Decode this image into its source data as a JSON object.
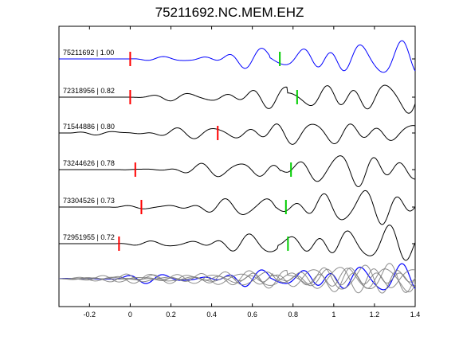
{
  "chart_data": {
    "type": "line",
    "title": "75211692.NC.MEM.EHZ",
    "xlabel": "",
    "ylabel": "",
    "xlim": [
      -0.35,
      1.4
    ],
    "x_ticks": [
      "-0.2",
      "0",
      "0.2",
      "0.4",
      "0.6",
      "0.8",
      "1",
      "1.2",
      "1.4"
    ],
    "x_tick_values": [
      -0.2,
      0,
      0.2,
      0.4,
      0.6,
      0.8,
      1.0,
      1.2,
      1.4
    ],
    "grid": false,
    "legend": "none",
    "colors": {
      "master": "#0000ff",
      "trace": "#000000",
      "stack": "#808080",
      "p_pick": "#ff0000",
      "s_pick": "#00cc00"
    },
    "series": [
      {
        "name": "75211692 | 1.00",
        "color": "#0000ff",
        "p_pick": 0.0,
        "s_pick": 0.735,
        "onset": 0.0,
        "seed": 1
      },
      {
        "name": "72318956 | 0.82",
        "color": "#000000",
        "p_pick": 0.0,
        "s_pick": 0.82,
        "onset": -0.02,
        "seed": 2
      },
      {
        "name": "71544886 | 0.80",
        "color": "#000000",
        "p_pick": 0.43,
        "s_pick": null,
        "onset": -0.3,
        "seed": 3
      },
      {
        "name": "73244626 | 0.78",
        "color": "#000000",
        "p_pick": 0.025,
        "s_pick": 0.79,
        "onset": -0.05,
        "seed": 4
      },
      {
        "name": "73304526 | 0.73",
        "color": "#000000",
        "p_pick": 0.055,
        "s_pick": 0.765,
        "onset": -0.1,
        "seed": 5
      },
      {
        "name": "72951955 | 0.72",
        "color": "#000000",
        "p_pick": -0.055,
        "s_pick": 0.775,
        "onset": -0.07,
        "seed": 6
      }
    ]
  }
}
